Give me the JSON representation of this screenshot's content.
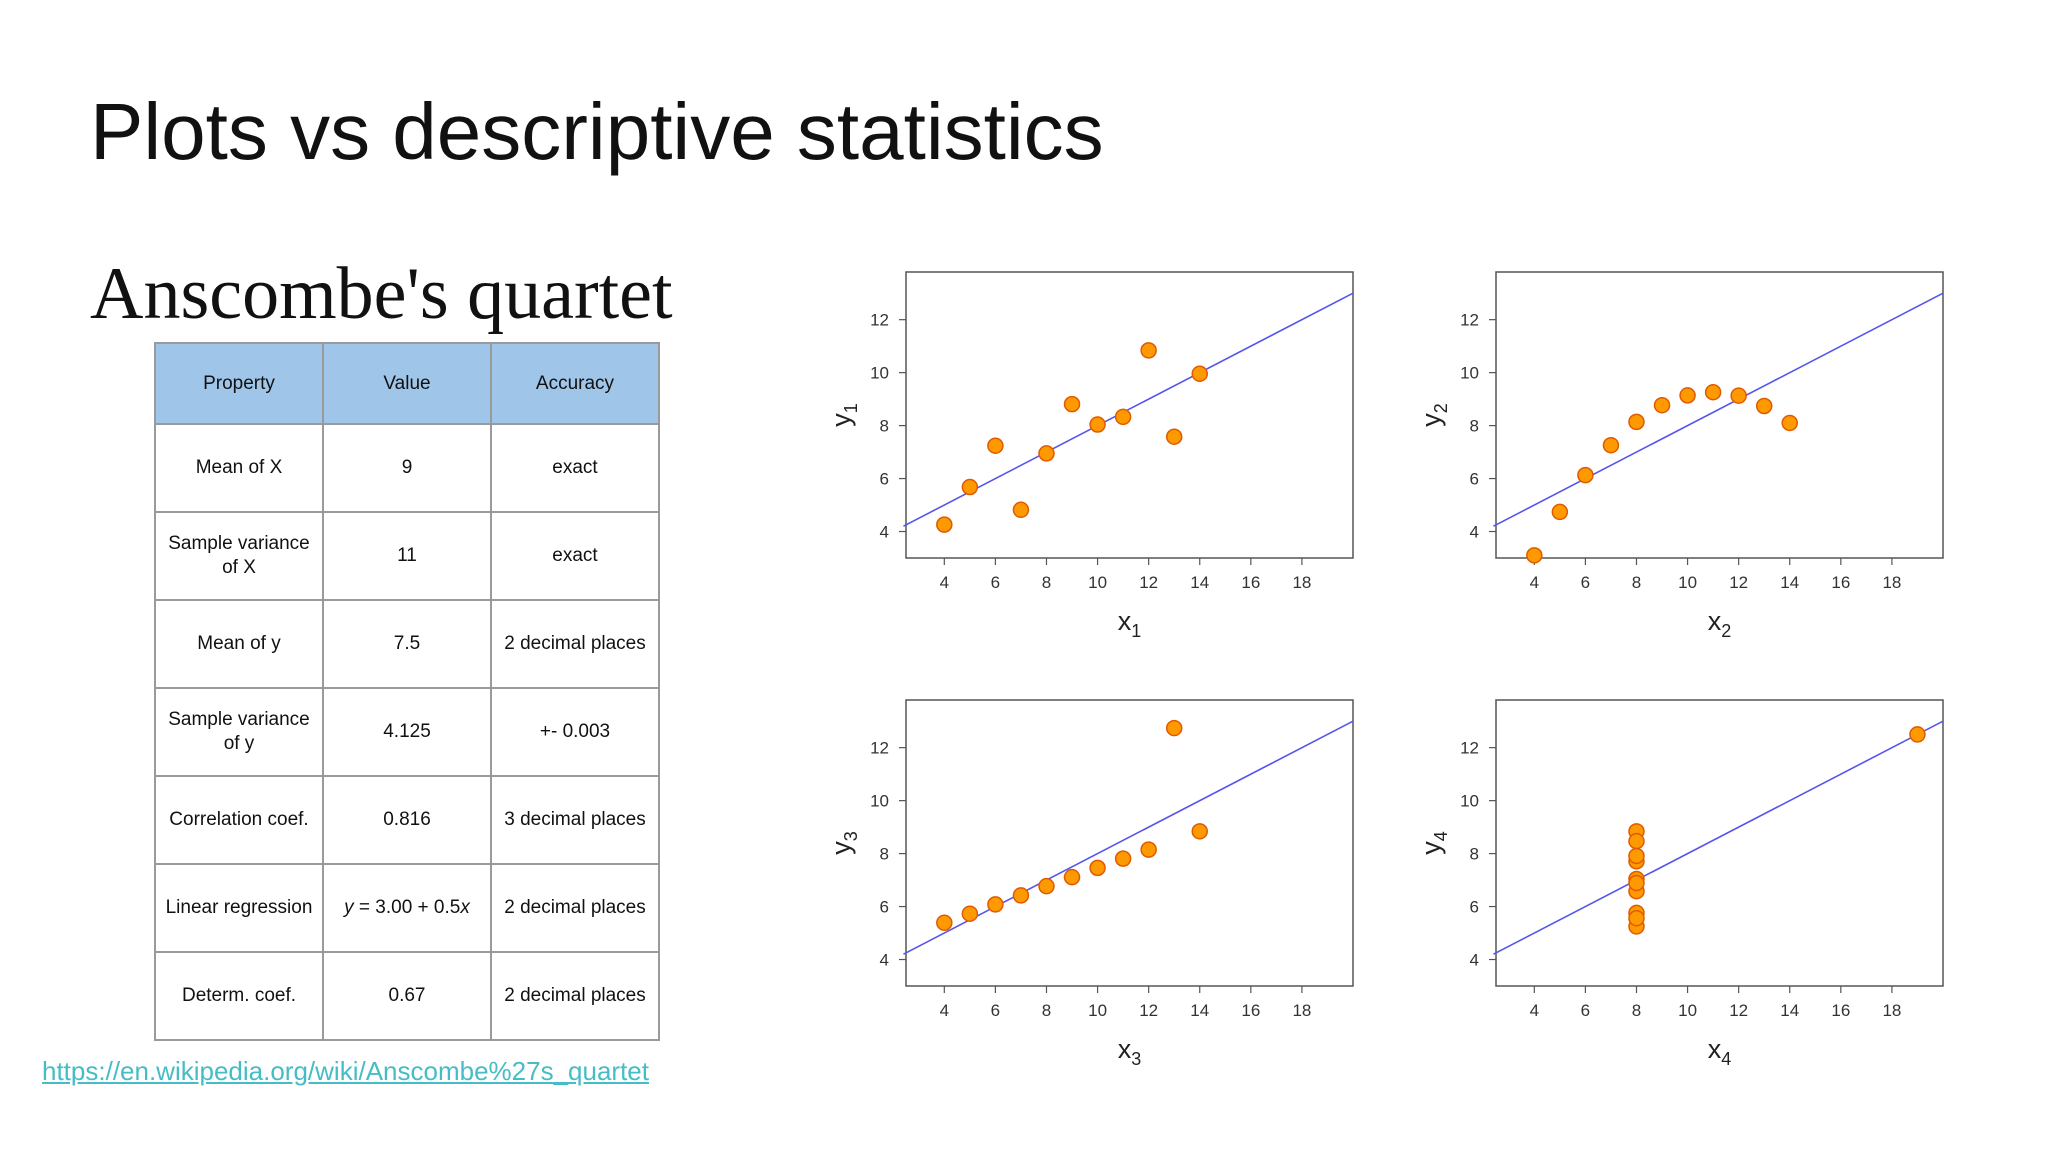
{
  "slide": {
    "title": "Plots vs descriptive statistics",
    "subtitle": "Anscombe's quartet",
    "link": "https://en.wikipedia.org/wiki/Anscombe%27s_quartet"
  },
  "table": {
    "headers": [
      "Property",
      "Value",
      "Accuracy"
    ],
    "rows": [
      [
        "Mean of X",
        "9",
        "exact"
      ],
      [
        "Sample variance of X",
        "11",
        "exact"
      ],
      [
        "Mean of y",
        "7.5",
        "2 decimal places"
      ],
      [
        "Sample variance of y",
        "4.125",
        "+- 0.003"
      ],
      [
        "Correlation coef.",
        "0.816",
        "3 decimal places"
      ],
      [
        "Linear regression",
        "y = 3.00 + 0.5x",
        "2 decimal places"
      ],
      [
        "Determ. coef.",
        "0.67",
        "2 decimal places"
      ]
    ]
  },
  "colors": {
    "point_fill": "#ff9900",
    "point_stroke": "#e05a00",
    "fit_line": "#5555ee",
    "header_bg": "#9fc5e8",
    "link": "#46bdc6"
  },
  "chart_data": [
    {
      "type": "scatter",
      "xlabel": "x",
      "xsub": "1",
      "ylabel": "y",
      "ysub": "1",
      "xlim": [
        2.5,
        20
      ],
      "ylim": [
        3,
        13.8
      ],
      "xticks": [
        4,
        6,
        8,
        10,
        12,
        14,
        16,
        18
      ],
      "yticks": [
        4,
        6,
        8,
        10,
        12
      ],
      "fit": {
        "intercept": 3.0,
        "slope": 0.5
      },
      "x": [
        10,
        8,
        13,
        9,
        11,
        14,
        6,
        4,
        12,
        7,
        5
      ],
      "y": [
        8.04,
        6.95,
        7.58,
        8.81,
        8.33,
        9.96,
        7.24,
        4.26,
        10.84,
        4.82,
        5.68
      ]
    },
    {
      "type": "scatter",
      "xlabel": "x",
      "xsub": "2",
      "ylabel": "y",
      "ysub": "2",
      "xlim": [
        2.5,
        20
      ],
      "ylim": [
        3,
        13.8
      ],
      "xticks": [
        4,
        6,
        8,
        10,
        12,
        14,
        16,
        18
      ],
      "yticks": [
        4,
        6,
        8,
        10,
        12
      ],
      "fit": {
        "intercept": 3.0,
        "slope": 0.5
      },
      "x": [
        10,
        8,
        13,
        9,
        11,
        14,
        6,
        4,
        12,
        7,
        5
      ],
      "y": [
        9.14,
        8.14,
        8.74,
        8.77,
        9.26,
        8.1,
        6.13,
        3.1,
        9.13,
        7.26,
        4.74
      ]
    },
    {
      "type": "scatter",
      "xlabel": "x",
      "xsub": "3",
      "ylabel": "y",
      "ysub": "3",
      "xlim": [
        2.5,
        20
      ],
      "ylim": [
        3,
        13.8
      ],
      "xticks": [
        4,
        6,
        8,
        10,
        12,
        14,
        16,
        18
      ],
      "yticks": [
        4,
        6,
        8,
        10,
        12
      ],
      "fit": {
        "intercept": 3.0,
        "slope": 0.5
      },
      "x": [
        10,
        8,
        13,
        9,
        11,
        14,
        6,
        4,
        12,
        7,
        5
      ],
      "y": [
        7.46,
        6.77,
        12.74,
        7.11,
        7.81,
        8.84,
        6.08,
        5.39,
        8.15,
        6.42,
        5.73
      ]
    },
    {
      "type": "scatter",
      "xlabel": "x",
      "xsub": "4",
      "ylabel": "y",
      "ysub": "4",
      "xlim": [
        2.5,
        20
      ],
      "ylim": [
        3,
        13.8
      ],
      "xticks": [
        4,
        6,
        8,
        10,
        12,
        14,
        16,
        18
      ],
      "yticks": [
        4,
        6,
        8,
        10,
        12
      ],
      "fit": {
        "intercept": 3.0,
        "slope": 0.5
      },
      "x": [
        8,
        8,
        8,
        8,
        8,
        8,
        8,
        19,
        8,
        8,
        8
      ],
      "y": [
        6.58,
        5.76,
        7.71,
        8.84,
        8.47,
        7.04,
        5.25,
        12.5,
        5.56,
        7.91,
        6.89
      ]
    }
  ]
}
